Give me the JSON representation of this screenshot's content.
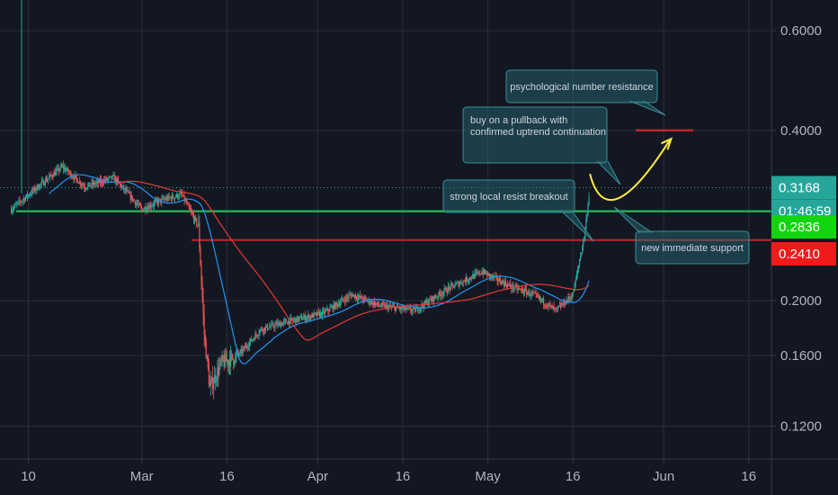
{
  "chart_data": {
    "type": "candlestick",
    "x_tick_labels": [
      {
        "date": "2020-02-10",
        "label": "10"
      },
      {
        "date": "2020-03-01",
        "label": "Mar"
      },
      {
        "date": "2020-03-16",
        "label": "16"
      },
      {
        "date": "2020-04-01",
        "label": "Apr"
      },
      {
        "date": "2020-04-16",
        "label": "16"
      },
      {
        "date": "2020-05-01",
        "label": "May"
      },
      {
        "date": "2020-05-16",
        "label": "16"
      },
      {
        "date": "2020-06-01",
        "label": "Jun"
      },
      {
        "date": "2020-06-16",
        "label": "16"
      }
    ],
    "y_axis": {
      "scale": "log",
      "ticks": [
        "0.1200",
        "0.1600",
        "0.2000",
        "0.4000",
        "0.6000"
      ],
      "range": [
        0.105,
        0.68
      ]
    },
    "x_range": [
      "2020-02-05",
      "2020-06-20"
    ],
    "price_path": [
      [
        "2020-02-07",
        0.29
      ],
      [
        "2020-02-12",
        0.32
      ],
      [
        "2020-02-16",
        0.345
      ],
      [
        "2020-02-20",
        0.318
      ],
      [
        "2020-02-25",
        0.33
      ],
      [
        "2020-03-01",
        0.29
      ],
      [
        "2020-03-04",
        0.3
      ],
      [
        "2020-03-08",
        0.308
      ],
      [
        "2020-03-11",
        0.27
      ],
      [
        "2020-03-12",
        0.175
      ],
      [
        "2020-03-13",
        0.14
      ],
      [
        "2020-03-15",
        0.155
      ],
      [
        "2020-03-18",
        0.16
      ],
      [
        "2020-03-22",
        0.178
      ],
      [
        "2020-03-27",
        0.184
      ],
      [
        "2020-04-02",
        0.19
      ],
      [
        "2020-04-07",
        0.205
      ],
      [
        "2020-04-12",
        0.196
      ],
      [
        "2020-04-18",
        0.192
      ],
      [
        "2020-04-24",
        0.21
      ],
      [
        "2020-04-30",
        0.225
      ],
      [
        "2020-05-05",
        0.212
      ],
      [
        "2020-05-09",
        0.205
      ],
      [
        "2020-05-13",
        0.192
      ],
      [
        "2020-05-16",
        0.205
      ],
      [
        "2020-05-18",
        0.26
      ],
      [
        "2020-05-19",
        0.318
      ]
    ],
    "horizontal_levels": [
      {
        "price": 0.2878,
        "color": "#22ab4c"
      },
      {
        "price": 0.256,
        "color": "#c0262b"
      },
      {
        "price": 0.4,
        "color": "#c0262b"
      }
    ],
    "projection": {
      "color": "#ffeb3b",
      "points": [
        [
          "2020-05-19",
          0.335
        ],
        [
          "2020-05-22",
          0.292
        ],
        [
          "2020-06-02",
          0.395
        ]
      ]
    },
    "annotations": [
      "psychological number resistance",
      "buy on a pullback with\nconfirmed uptrend continuation",
      "strong local resist breakout",
      "new immediate support"
    ],
    "price_tags": [
      {
        "text": "0.3168",
        "bg": "#26a69a",
        "price": 0.3168
      },
      {
        "text": "01:46:59",
        "bg": "#26a69a",
        "price": 0.2878
      },
      {
        "text": "0.2836",
        "bg": "#13d40f",
        "price": 0.27
      },
      {
        "text": "0.2410",
        "bg": "#f11b1b",
        "price": 0.242
      }
    ],
    "colors": {
      "background": "#131722",
      "up": "#26a69a",
      "down": "#ef5350",
      "ma_fast": "#2196f3",
      "ma_slow": "#e53935",
      "grid": "#2a2e39"
    },
    "grid": true
  }
}
